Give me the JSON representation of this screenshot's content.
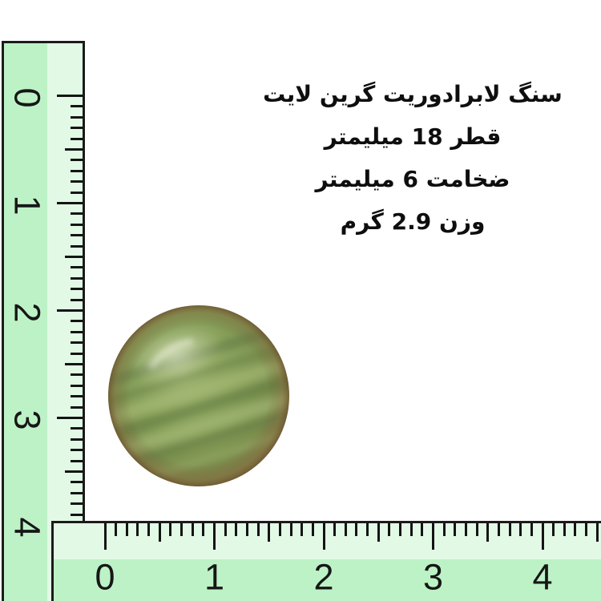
{
  "product_info": {
    "language": "fa",
    "direction": "rtl",
    "lines": [
      "سنگ لابرادوریت گرین لایت",
      "قطر 18 میلیمتر",
      "ضخامت 6 میلیمتر",
      "وزن 2.9 گرم"
    ]
  },
  "vertical_ruler": {
    "orientation": "vertical",
    "labels": [
      "0",
      "1",
      "2",
      "3",
      "4"
    ],
    "minor_ticks_per_unit": 10,
    "colors": {
      "number_band": "#bdf2c6",
      "tick_band": "#e2fae5",
      "border": "#1b1b1b",
      "tick": "#141414",
      "digit": "#161616"
    }
  },
  "horizontal_ruler": {
    "orientation": "horizontal",
    "labels": [
      "0",
      "1",
      "2",
      "3",
      "4"
    ],
    "minor_ticks_per_unit": 10,
    "colors": {
      "number_band": "#bdf2c6",
      "tick_band": "#e2fae5",
      "border": "#1b1b1b",
      "tick": "#141414",
      "digit": "#161616"
    }
  },
  "stone": {
    "description": "round green labradorite cabochon with diagonal darker bands and glossy highlight",
    "colors": {
      "rim": "#8a7347",
      "base": "#7e9350",
      "light_band": "#b0c383",
      "dark_band": "#5d7540",
      "highlight": "#eef3de"
    }
  },
  "background_color": "#ffffff"
}
